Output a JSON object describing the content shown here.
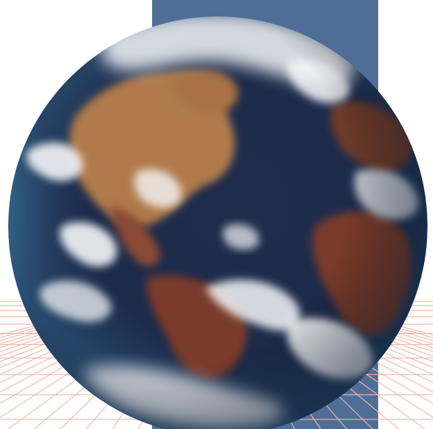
{
  "scene": {
    "subject": "earth-globe",
    "colors": {
      "backdrop_panel": "#4f6e97",
      "grid_lines": "#f2b7a6",
      "ocean_deep": "#1c2b4a",
      "ocean_light": "#3f6f96",
      "land_tan": "#b07a4c",
      "land_brown": "#7a3b2a",
      "cloud": "#f4f6f8",
      "background": "#ffffff"
    }
  }
}
